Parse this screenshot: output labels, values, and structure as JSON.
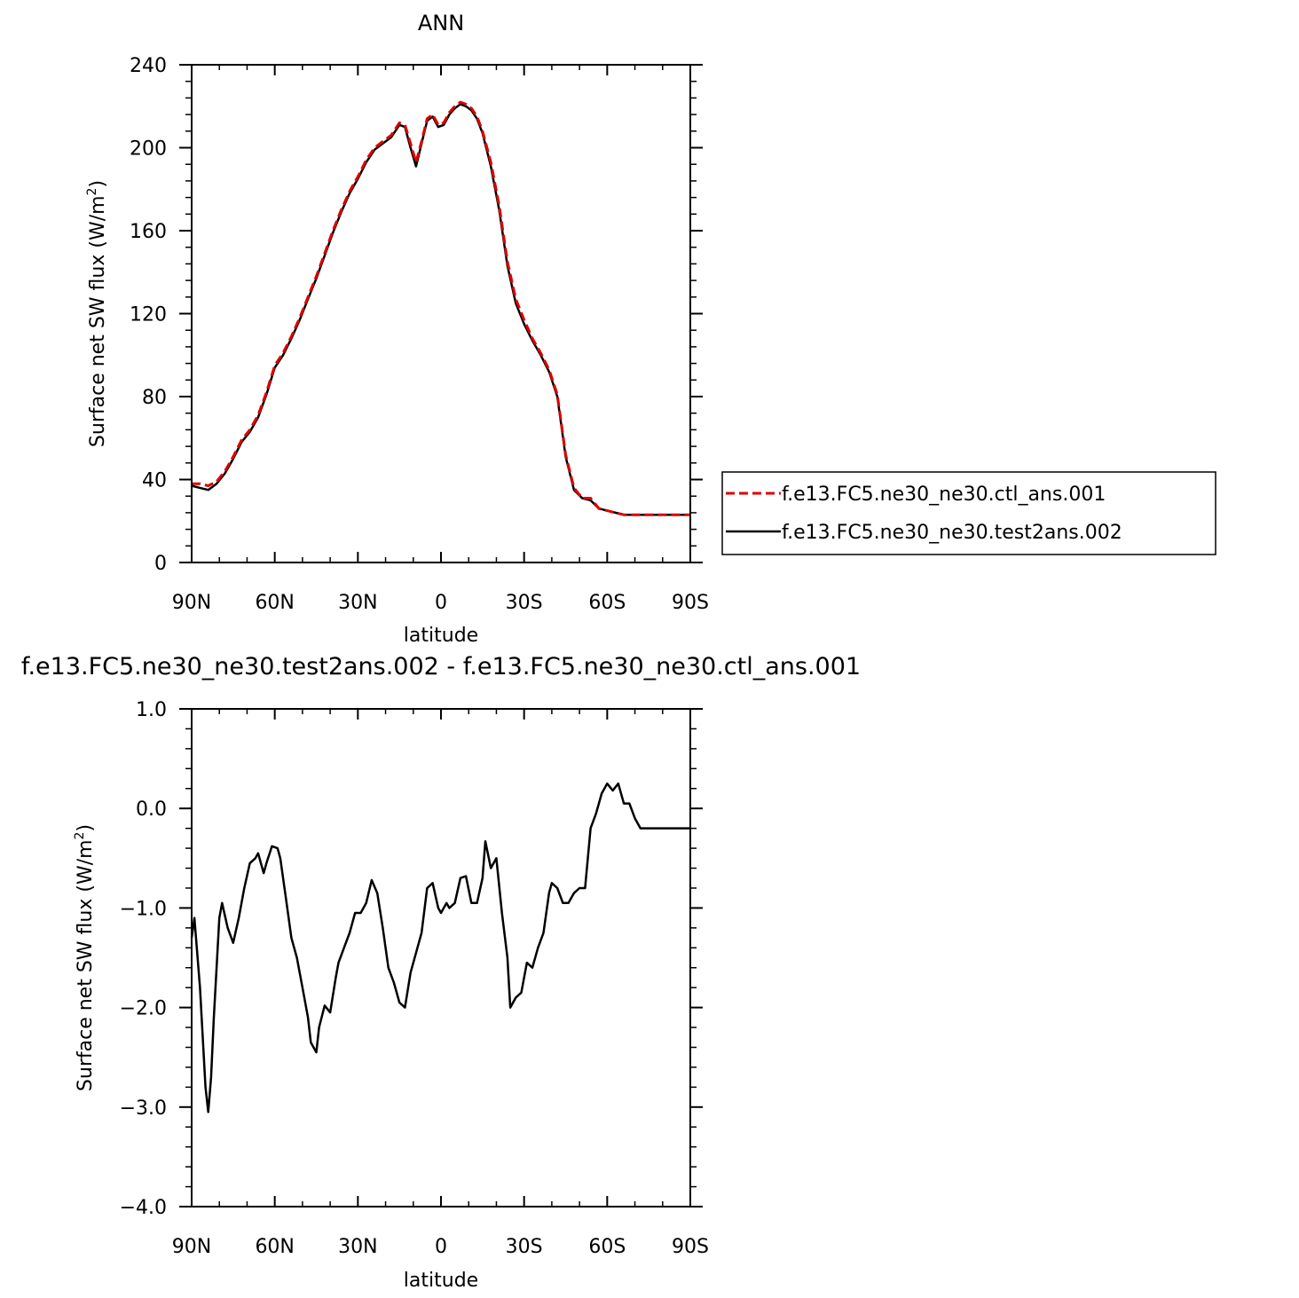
{
  "chart_data": [
    {
      "type": "line",
      "title": "ANN",
      "ylabel": "Surface net SW flux (W/m",
      "ylabel_sup": "2",
      "ylabel_tail": ")",
      "xlabel": "latitude",
      "xlim": [
        -90,
        90
      ],
      "ylim": [
        0,
        240
      ],
      "x_ticks": [
        -90,
        -60,
        -30,
        0,
        30,
        60,
        90
      ],
      "x_tick_labels": [
        "90N",
        "60N",
        "30N",
        "0",
        "30S",
        "60S",
        "90S"
      ],
      "y_ticks": [
        0,
        40,
        80,
        120,
        160,
        200,
        240
      ],
      "y_tick_labels": [
        "0",
        "40",
        "80",
        "120",
        "160",
        "200",
        "240"
      ],
      "legend_position": "right",
      "series": [
        {
          "name": "f.e13.FC5.ne30_ne30.ctl_ans.001",
          "color": "#dd0000",
          "dash": "dashed",
          "x": [
            -90,
            -87,
            -84,
            -81,
            -78,
            -75,
            -72,
            -69,
            -66,
            -63,
            -60,
            -57,
            -54,
            -51,
            -48,
            -45,
            -42,
            -39,
            -36,
            -33,
            -30,
            -27,
            -24,
            -21,
            -18,
            -15,
            -13,
            -11,
            -9,
            -7,
            -5,
            -3,
            -1,
            1,
            3,
            5,
            7,
            9,
            11,
            13,
            15,
            18,
            21,
            24,
            27,
            30,
            33,
            36,
            39,
            42,
            45,
            48,
            51,
            54,
            57,
            60,
            63,
            66,
            69,
            72,
            75,
            78,
            81,
            84,
            87,
            90
          ],
          "y": [
            38,
            38,
            37,
            39,
            44,
            51,
            59,
            64,
            71,
            82,
            95,
            101,
            109,
            118,
            128,
            138,
            149,
            160,
            170,
            179,
            186,
            194,
            200,
            203,
            206,
            212,
            211,
            202,
            193,
            203,
            214,
            216,
            211,
            212,
            217,
            220,
            222,
            221,
            219,
            215,
            208,
            193,
            172,
            145,
            127,
            117,
            108,
            101,
            93,
            81,
            52,
            36,
            31,
            31,
            26,
            25,
            24,
            23,
            23,
            23,
            23,
            23,
            23,
            23,
            23,
            23
          ]
        },
        {
          "name": "f.e13.FC5.ne30_ne30.test2ans.002",
          "color": "#000000",
          "dash": "solid",
          "x": [
            -90,
            -87,
            -84,
            -81,
            -78,
            -75,
            -72,
            -69,
            -66,
            -63,
            -60,
            -57,
            -54,
            -51,
            -48,
            -45,
            -42,
            -39,
            -36,
            -33,
            -30,
            -27,
            -24,
            -21,
            -18,
            -15,
            -13,
            -11,
            -9,
            -7,
            -5,
            -3,
            -1,
            1,
            3,
            5,
            7,
            9,
            11,
            13,
            15,
            18,
            21,
            24,
            27,
            30,
            33,
            36,
            39,
            42,
            45,
            48,
            51,
            54,
            57,
            60,
            63,
            66,
            69,
            72,
            75,
            78,
            81,
            84,
            87,
            90
          ],
          "y": [
            37,
            36,
            35,
            38,
            43,
            50,
            58,
            63,
            70,
            81,
            94,
            100,
            108,
            117,
            127,
            137,
            148,
            159,
            169,
            178,
            185,
            193,
            199,
            202,
            205,
            211,
            210,
            200,
            191,
            202,
            213,
            215,
            210,
            211,
            216,
            219,
            221,
            220,
            218,
            214,
            207,
            191,
            170,
            143,
            125,
            115,
            107,
            100,
            92,
            80,
            51,
            35,
            31,
            30,
            26,
            25,
            24,
            23,
            23,
            23,
            23,
            23,
            23,
            23,
            23,
            23
          ]
        }
      ]
    },
    {
      "type": "line",
      "title": "f.e13.FC5.ne30_ne30.test2ans.002 - f.e13.FC5.ne30_ne30.ctl_ans.001",
      "ylabel": "Surface net SW flux (W/m",
      "ylabel_sup": "2",
      "ylabel_tail": ")",
      "xlabel": "latitude",
      "xlim": [
        -90,
        90
      ],
      "ylim": [
        -4.0,
        1.0
      ],
      "x_ticks": [
        -90,
        -60,
        -30,
        0,
        30,
        60,
        90
      ],
      "x_tick_labels": [
        "90N",
        "60N",
        "30N",
        "0",
        "30S",
        "60S",
        "90S"
      ],
      "y_ticks": [
        -4.0,
        -3.0,
        -2.0,
        -1.0,
        0.0,
        1.0
      ],
      "y_tick_labels": [
        "−4.0",
        "−3.0",
        "−2.0",
        "−1.0",
        "0.0",
        "1.0"
      ],
      "series": [
        {
          "color": "#000000",
          "dash": "solid",
          "x": [
            -90,
            -89,
            -87,
            -85,
            -84,
            -83,
            -82,
            -81,
            -80,
            -79,
            -77,
            -75,
            -73,
            -71,
            -69,
            -67,
            -66,
            -64,
            -63,
            -61,
            -59,
            -58,
            -56,
            -54,
            -52,
            -50,
            -48,
            -47,
            -45,
            -44,
            -42,
            -40,
            -38,
            -37,
            -35,
            -33,
            -31,
            -29,
            -27,
            -25,
            -23,
            -21,
            -19,
            -17,
            -15,
            -13,
            -11,
            -9,
            -7,
            -5,
            -3,
            -1,
            0,
            2,
            3,
            5,
            7,
            9,
            11,
            13,
            15,
            16,
            18,
            20,
            22,
            24,
            25,
            27,
            29,
            31,
            33,
            35,
            37,
            39,
            40,
            42,
            44,
            46,
            48,
            50,
            52,
            54,
            56,
            58,
            60,
            62,
            64,
            66,
            68,
            70,
            72,
            74,
            76,
            78,
            80,
            81,
            83,
            85,
            87,
            89,
            90
          ],
          "y": [
            -1.3,
            -1.1,
            -1.8,
            -2.8,
            -3.05,
            -2.7,
            -2.1,
            -1.6,
            -1.1,
            -0.95,
            -1.2,
            -1.35,
            -1.1,
            -0.8,
            -0.55,
            -0.5,
            -0.45,
            -0.65,
            -0.55,
            -0.38,
            -0.4,
            -0.5,
            -0.9,
            -1.3,
            -1.5,
            -1.8,
            -2.1,
            -2.35,
            -2.45,
            -2.2,
            -1.98,
            -2.05,
            -1.7,
            -1.55,
            -1.4,
            -1.25,
            -1.05,
            -1.05,
            -0.95,
            -0.72,
            -0.85,
            -1.2,
            -1.6,
            -1.75,
            -1.95,
            -2.0,
            -1.65,
            -1.45,
            -1.25,
            -0.8,
            -0.75,
            -1.0,
            -1.05,
            -0.95,
            -1.0,
            -0.95,
            -0.7,
            -0.68,
            -0.95,
            -0.95,
            -0.7,
            -0.33,
            -0.6,
            -0.5,
            -1.05,
            -1.5,
            -2.0,
            -1.9,
            -1.85,
            -1.55,
            -1.6,
            -1.4,
            -1.25,
            -0.85,
            -0.75,
            -0.8,
            -0.95,
            -0.95,
            -0.85,
            -0.8,
            -0.8,
            -0.2,
            -0.05,
            0.15,
            0.25,
            0.18,
            0.25,
            0.05,
            0.05,
            -0.1,
            -0.2,
            -0.2,
            -0.2,
            -0.2,
            -0.2,
            -0.2,
            -0.2,
            -0.2,
            -0.2,
            -0.2,
            -0.2
          ]
        }
      ]
    }
  ]
}
